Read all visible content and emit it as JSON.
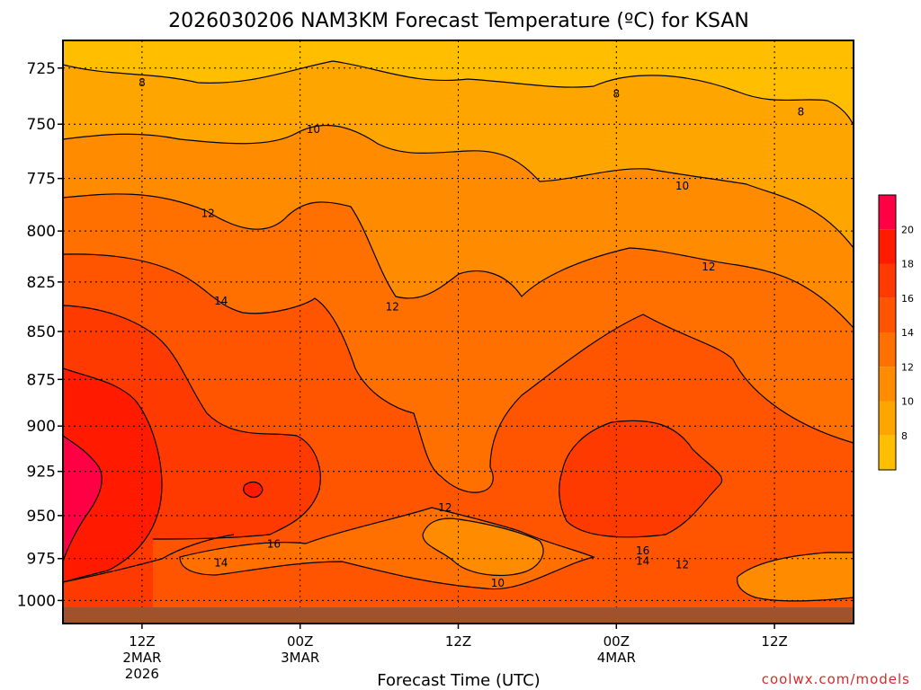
{
  "chart_data": {
    "type": "contour",
    "title": "2026030206 NAM3KM Forecast Temperature (ºC) for KSAN",
    "xlabel": "Forecast Time (UTC)",
    "ylabel": "",
    "y_scale": "pressure (log)",
    "y_inverted": true,
    "ylim": [
      713,
      1014
    ],
    "xlim": [
      "2026-03-02T06Z",
      "2026-03-04T18Z"
    ],
    "y_ticks": [
      725,
      750,
      775,
      800,
      825,
      850,
      875,
      900,
      925,
      950,
      975,
      1000
    ],
    "x_ticks": [
      {
        "time": "2026-03-02T12Z",
        "lines": [
          "12Z",
          "2MAR",
          "2026"
        ]
      },
      {
        "time": "2026-03-03T00Z",
        "lines": [
          "00Z",
          "3MAR"
        ]
      },
      {
        "time": "2026-03-03T12Z",
        "lines": [
          "12Z"
        ]
      },
      {
        "time": "2026-03-04T00Z",
        "lines": [
          "00Z",
          "4MAR"
        ]
      },
      {
        "time": "2026-03-04T12Z",
        "lines": [
          "12Z"
        ]
      }
    ],
    "grid": true,
    "contour_interval_c": 2,
    "contour_labels": [
      {
        "value": 8,
        "time": "2026-03-02T12Z",
        "p": 731
      },
      {
        "value": 8,
        "time": "2026-03-04T00Z",
        "p": 736
      },
      {
        "value": 8,
        "time": "2026-03-04T14Z",
        "p": 744
      },
      {
        "value": 10,
        "time": "2026-03-03T01Z",
        "p": 752
      },
      {
        "value": 10,
        "time": "2026-03-04T05Z",
        "p": 778
      },
      {
        "value": 12,
        "time": "2026-03-02T17Z",
        "p": 791
      },
      {
        "value": 12,
        "time": "2026-03-04T07Z",
        "p": 817
      },
      {
        "value": 12,
        "time": "2026-03-03T07Z",
        "p": 837
      },
      {
        "value": 12,
        "time": "2026-03-03T11Z",
        "p": 945
      },
      {
        "value": 12,
        "time": "2026-03-04T05Z",
        "p": 978
      },
      {
        "value": 10,
        "time": "2026-03-03T15Z",
        "p": 989
      },
      {
        "value": 14,
        "time": "2026-03-02T18Z",
        "p": 834
      },
      {
        "value": 14,
        "time": "2026-03-02T18Z",
        "p": 977
      },
      {
        "value": 14,
        "time": "2026-03-04T02Z",
        "p": 976
      },
      {
        "value": 16,
        "time": "2026-03-02T22Z",
        "p": 966
      },
      {
        "value": 16,
        "time": "2026-03-04T02Z",
        "p": 970
      }
    ],
    "colorbar": {
      "labels": [
        "8",
        "10",
        "12",
        "14",
        "16",
        "18",
        "20"
      ],
      "colors": [
        "#ffbf00",
        "#ffa500",
        "#ff8c00",
        "#ff7000",
        "#ff5500",
        "#ff3a00",
        "#ff1a00",
        "#ff0044"
      ]
    },
    "ground_color": "#a0522d",
    "source": "coolwx.com/models"
  }
}
